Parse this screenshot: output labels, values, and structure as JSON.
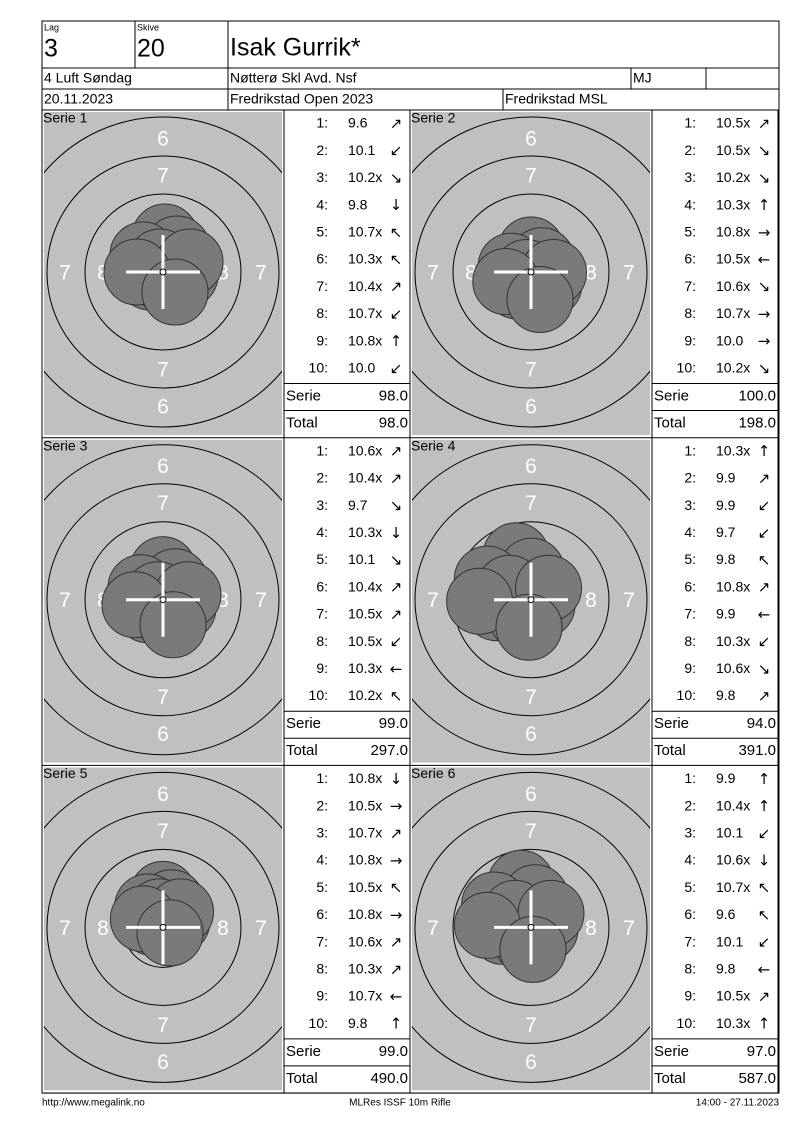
{
  "header": {
    "lag_label": "Lag",
    "lag": "3",
    "skive_label": "Skive",
    "skive": "20",
    "name": "Isak Gurrik*",
    "event": "4 Luft Søndag",
    "club": "Nøtterø Skl Avd. Nsf",
    "class": "MJ",
    "date": "20.11.2023",
    "competition": "Fredrikstad Open 2023",
    "venue": "Fredrikstad MSL"
  },
  "ring_labels": [
    "6",
    "7",
    "8"
  ],
  "series": [
    {
      "title": "Serie 1",
      "serie_label": "Serie",
      "serie": "98.0",
      "total_label": "Total",
      "total": "98.0",
      "shots": [
        {
          "n": "1:",
          "score": "9.6",
          "dir": "↗"
        },
        {
          "n": "2:",
          "score": "10.1",
          "dir": "↙"
        },
        {
          "n": "3:",
          "score": "10.2x",
          "dir": "↘"
        },
        {
          "n": "4:",
          "score": "9.8",
          "dir": "↓"
        },
        {
          "n": "5:",
          "score": "10.7x",
          "dir": "↖"
        },
        {
          "n": "6:",
          "score": "10.3x",
          "dir": "↖"
        },
        {
          "n": "7:",
          "score": "10.4x",
          "dir": "↗"
        },
        {
          "n": "8:",
          "score": "10.7x",
          "dir": "↙"
        },
        {
          "n": "9:",
          "score": "10.8x",
          "dir": "↑"
        },
        {
          "n": "10:",
          "score": "10.0",
          "dir": "↙"
        }
      ]
    },
    {
      "title": "Serie 2",
      "serie_label": "Serie",
      "serie": "100.0",
      "total_label": "Total",
      "total": "198.0",
      "shots": [
        {
          "n": "1:",
          "score": "10.5x",
          "dir": "↗"
        },
        {
          "n": "2:",
          "score": "10.5x",
          "dir": "↘"
        },
        {
          "n": "3:",
          "score": "10.2x",
          "dir": "↘"
        },
        {
          "n": "4:",
          "score": "10.3x",
          "dir": "↑"
        },
        {
          "n": "5:",
          "score": "10.8x",
          "dir": "→"
        },
        {
          "n": "6:",
          "score": "10.5x",
          "dir": "←"
        },
        {
          "n": "7:",
          "score": "10.6x",
          "dir": "↘"
        },
        {
          "n": "8:",
          "score": "10.7x",
          "dir": "→"
        },
        {
          "n": "9:",
          "score": "10.0",
          "dir": "→"
        },
        {
          "n": "10:",
          "score": "10.2x",
          "dir": "↘"
        }
      ]
    },
    {
      "title": "Serie 3",
      "serie_label": "Serie",
      "serie": "99.0",
      "total_label": "Total",
      "total": "297.0",
      "shots": [
        {
          "n": "1:",
          "score": "10.6x",
          "dir": "↗"
        },
        {
          "n": "2:",
          "score": "10.4x",
          "dir": "↗"
        },
        {
          "n": "3:",
          "score": "9.7",
          "dir": "↘"
        },
        {
          "n": "4:",
          "score": "10.3x",
          "dir": "↓"
        },
        {
          "n": "5:",
          "score": "10.1",
          "dir": "↘"
        },
        {
          "n": "6:",
          "score": "10.4x",
          "dir": "↗"
        },
        {
          "n": "7:",
          "score": "10.5x",
          "dir": "↗"
        },
        {
          "n": "8:",
          "score": "10.5x",
          "dir": "↙"
        },
        {
          "n": "9:",
          "score": "10.3x",
          "dir": "←"
        },
        {
          "n": "10:",
          "score": "10.2x",
          "dir": "↖"
        }
      ]
    },
    {
      "title": "Serie 4",
      "serie_label": "Serie",
      "serie": "94.0",
      "total_label": "Total",
      "total": "391.0",
      "shots": [
        {
          "n": "1:",
          "score": "10.3x",
          "dir": "↑"
        },
        {
          "n": "2:",
          "score": "9.9",
          "dir": "↗"
        },
        {
          "n": "3:",
          "score": "9.9",
          "dir": "↙"
        },
        {
          "n": "4:",
          "score": "9.7",
          "dir": "↙"
        },
        {
          "n": "5:",
          "score": "9.8",
          "dir": "↖"
        },
        {
          "n": "6:",
          "score": "10.8x",
          "dir": "↗"
        },
        {
          "n": "7:",
          "score": "9.9",
          "dir": "←"
        },
        {
          "n": "8:",
          "score": "10.3x",
          "dir": "↙"
        },
        {
          "n": "9:",
          "score": "10.6x",
          "dir": "↘"
        },
        {
          "n": "10:",
          "score": "9.8",
          "dir": "↗"
        }
      ]
    },
    {
      "title": "Serie 5",
      "serie_label": "Serie",
      "serie": "99.0",
      "total_label": "Total",
      "total": "490.0",
      "shots": [
        {
          "n": "1:",
          "score": "10.8x",
          "dir": "↓"
        },
        {
          "n": "2:",
          "score": "10.5x",
          "dir": "→"
        },
        {
          "n": "3:",
          "score": "10.7x",
          "dir": "↗"
        },
        {
          "n": "4:",
          "score": "10.8x",
          "dir": "→"
        },
        {
          "n": "5:",
          "score": "10.5x",
          "dir": "↖"
        },
        {
          "n": "6:",
          "score": "10.8x",
          "dir": "→"
        },
        {
          "n": "7:",
          "score": "10.6x",
          "dir": "↗"
        },
        {
          "n": "8:",
          "score": "10.3x",
          "dir": "↗"
        },
        {
          "n": "9:",
          "score": "10.7x",
          "dir": "←"
        },
        {
          "n": "10:",
          "score": "9.8",
          "dir": "↑"
        }
      ]
    },
    {
      "title": "Serie 6",
      "serie_label": "Serie",
      "serie": "97.0",
      "total_label": "Total",
      "total": "587.0",
      "shots": [
        {
          "n": "1:",
          "score": "9.9",
          "dir": "↑"
        },
        {
          "n": "2:",
          "score": "10.4x",
          "dir": "↑"
        },
        {
          "n": "3:",
          "score": "10.1",
          "dir": "↙"
        },
        {
          "n": "4:",
          "score": "10.6x",
          "dir": "↓"
        },
        {
          "n": "5:",
          "score": "10.7x",
          "dir": "↖"
        },
        {
          "n": "6:",
          "score": "9.6",
          "dir": "↖"
        },
        {
          "n": "7:",
          "score": "10.1",
          "dir": "↙"
        },
        {
          "n": "8:",
          "score": "9.8",
          "dir": "←"
        },
        {
          "n": "9:",
          "score": "10.5x",
          "dir": "↗"
        },
        {
          "n": "10:",
          "score": "10.3x",
          "dir": "↑"
        }
      ]
    }
  ],
  "footer": {
    "left": "http://www.megalink.no",
    "center": "MLRes ISSF 10m Rifle",
    "right": "14:00 - 27.11.2023"
  }
}
